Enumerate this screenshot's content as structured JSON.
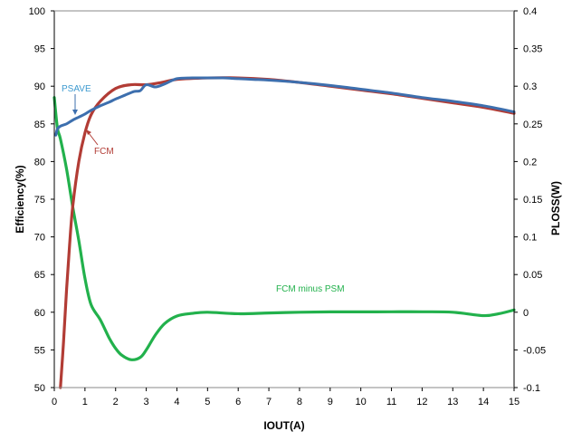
{
  "chart_data": {
    "type": "line",
    "xlabel": "IOUT(A)",
    "ylabel_left": "Efficiency(%)",
    "ylabel_right": "PLOSS(W)",
    "xlim": [
      0,
      15
    ],
    "ylim_left": [
      50,
      100
    ],
    "ylim_right": [
      -0.1,
      0.4
    ],
    "grid": false,
    "x_ticks": [
      0,
      1,
      2,
      3,
      4,
      5,
      6,
      7,
      8,
      9,
      10,
      11,
      12,
      13,
      14,
      15
    ],
    "y_ticks_left": [
      50,
      55,
      60,
      65,
      70,
      75,
      80,
      85,
      90,
      95,
      100
    ],
    "y_ticks_right": [
      "-0.1",
      "-0.05",
      "0",
      "0.05",
      "0.1",
      "0.15",
      "0.2",
      "0.25",
      "0.3",
      "0.35",
      "0.4"
    ],
    "colors": {
      "psave": "#3d6fae",
      "fcm": "#b23c35",
      "diff": "#22b14c"
    },
    "annotations": {
      "psave": "PSAVE",
      "fcm": "FCM",
      "diff": "FCM minus PSM"
    },
    "series": [
      {
        "name": "PSAVE",
        "axis": "left",
        "x": [
          0.05,
          0.1,
          0.2,
          0.4,
          0.6,
          0.8,
          1.0,
          1.2,
          1.5,
          1.8,
          2.0,
          2.3,
          2.6,
          2.8,
          3.0,
          3.3,
          3.6,
          4.0,
          4.5,
          5.0,
          5.5,
          6.0,
          6.5,
          7,
          8,
          9,
          10,
          11,
          12,
          13,
          14,
          15
        ],
        "values": [
          83.5,
          84.3,
          84.7,
          85.0,
          85.5,
          85.9,
          86.3,
          86.8,
          87.4,
          87.9,
          88.3,
          88.8,
          89.3,
          89.4,
          90.2,
          89.9,
          90.3,
          91.0,
          91.1,
          91.1,
          91.1,
          91.0,
          90.9,
          90.8,
          90.5,
          90.1,
          89.6,
          89.1,
          88.5,
          88.0,
          87.4,
          86.6
        ]
      },
      {
        "name": "FCM",
        "axis": "left",
        "x": [
          0.2,
          0.3,
          0.4,
          0.5,
          0.6,
          0.8,
          1.0,
          1.2,
          1.5,
          2.0,
          2.5,
          3.0,
          3.5,
          4.0,
          5.0,
          6.0,
          7,
          8,
          9,
          10,
          11,
          12,
          13,
          14,
          15
        ],
        "values": [
          50,
          56,
          63,
          69,
          74,
          80,
          83.8,
          86.2,
          88.0,
          89.7,
          90.2,
          90.2,
          90.5,
          90.9,
          91.1,
          91.1,
          90.9,
          90.5,
          90.0,
          89.5,
          89.0,
          88.4,
          87.8,
          87.2,
          86.4
        ]
      },
      {
        "name": "FCM minus PSM",
        "axis": "right",
        "x": [
          0.0,
          0.1,
          0.2,
          0.4,
          0.6,
          0.8,
          1.0,
          1.2,
          1.5,
          1.8,
          2.0,
          2.2,
          2.5,
          2.8,
          3.0,
          3.3,
          3.6,
          4.0,
          4.5,
          5.0,
          6.0,
          7.0,
          8.0,
          9.0,
          10.0,
          11.0,
          12.0,
          13.0,
          14.0,
          14.5,
          15.0
        ],
        "values": [
          0.285,
          0.245,
          0.23,
          0.19,
          0.14,
          0.095,
          0.045,
          0.01,
          -0.01,
          -0.035,
          -0.048,
          -0.057,
          -0.063,
          -0.06,
          -0.05,
          -0.03,
          -0.015,
          -0.005,
          -0.0015,
          0.0,
          -0.002,
          -0.001,
          0.0,
          0.0005,
          0.0005,
          0.0006,
          0.0006,
          0.0,
          -0.0045,
          -0.002,
          0.003
        ]
      }
    ]
  }
}
